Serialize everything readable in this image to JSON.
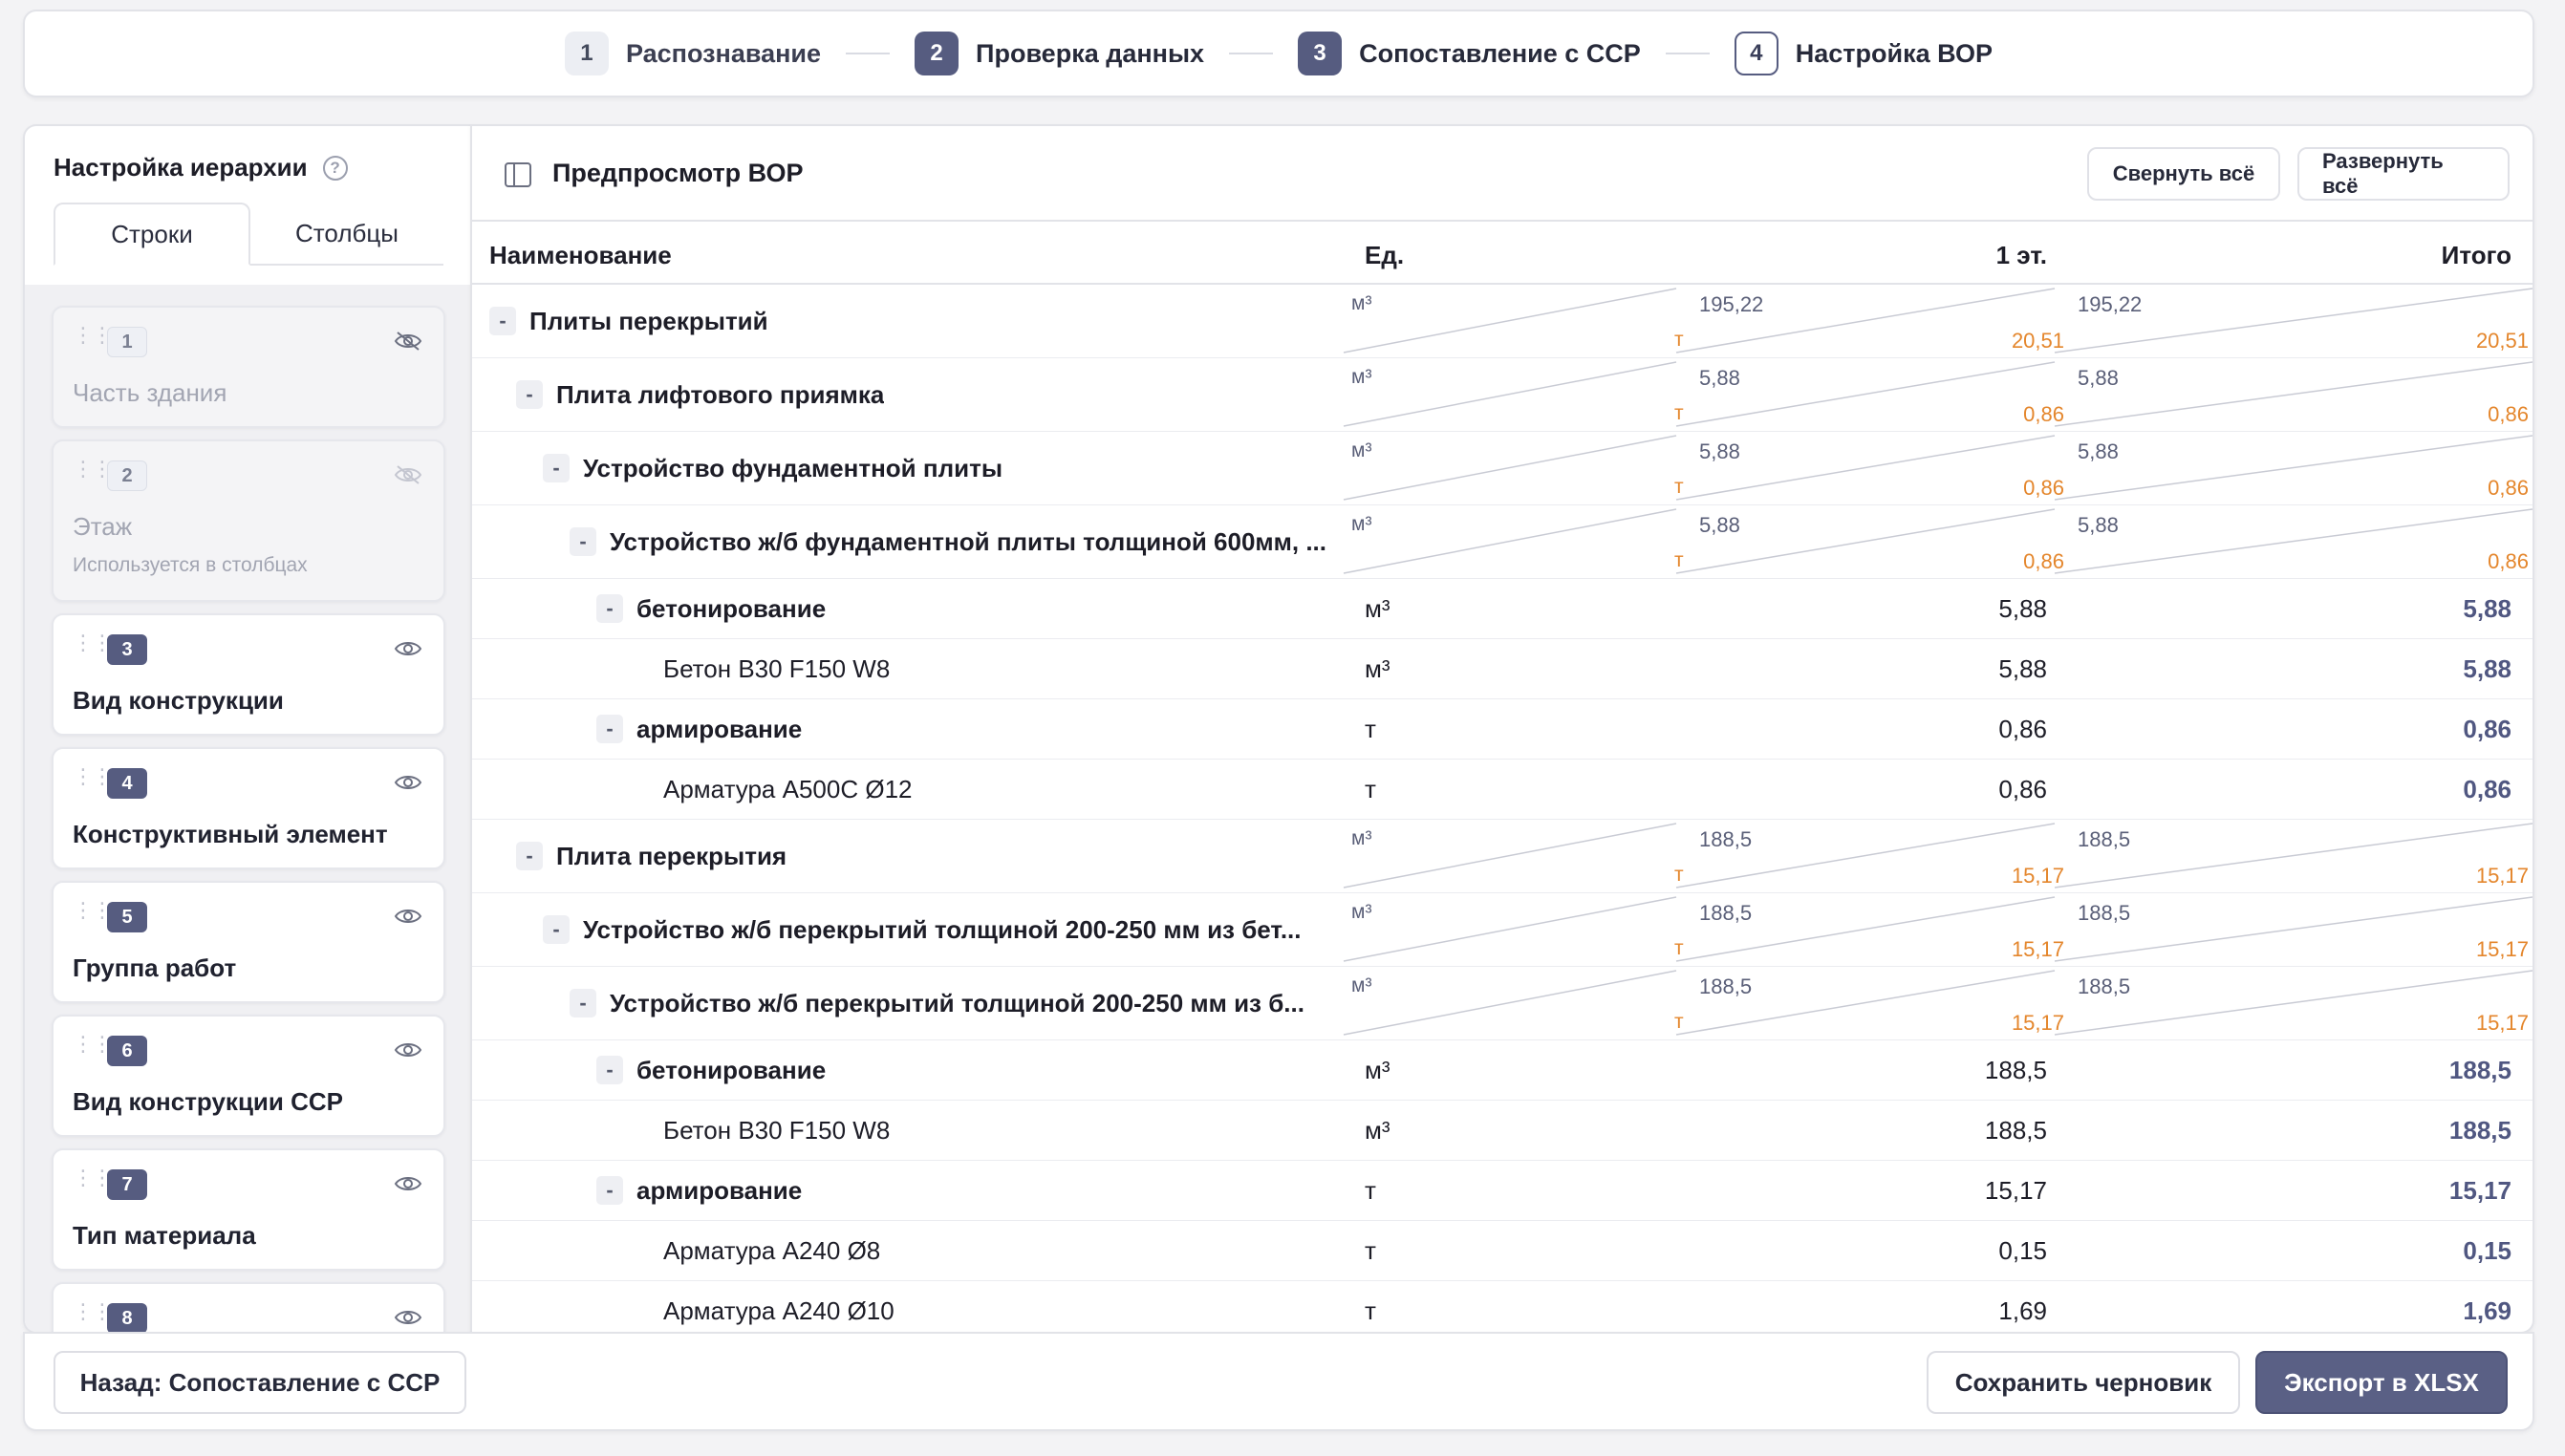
{
  "stepper": {
    "steps": [
      {
        "num": "1",
        "label": "Распознавание"
      },
      {
        "num": "2",
        "label": "Проверка данных"
      },
      {
        "num": "3",
        "label": "Сопоставление с ССР"
      },
      {
        "num": "4",
        "label": "Настройка ВОР"
      }
    ]
  },
  "sidebar": {
    "title": "Настройка иерархии",
    "help": "?",
    "tabs": [
      "Строки",
      "Столбцы"
    ],
    "levels": [
      {
        "num": "1",
        "name": "Часть здания",
        "sub": "",
        "icon": "eye-off-icon"
      },
      {
        "num": "2",
        "name": "Этаж",
        "sub": "Используется в столбцах",
        "icon": "eye-off-icon"
      },
      {
        "num": "3",
        "name": "Вид конструкции",
        "sub": "",
        "icon": "eye-icon"
      },
      {
        "num": "4",
        "name": "Конструктивный элемент",
        "sub": "",
        "icon": "eye-icon"
      },
      {
        "num": "5",
        "name": "Группа работ",
        "sub": "",
        "icon": "eye-icon"
      },
      {
        "num": "6",
        "name": "Вид конструкции ССР",
        "sub": "",
        "icon": "eye-icon"
      },
      {
        "num": "7",
        "name": "Тип материала",
        "sub": "",
        "icon": "eye-icon"
      },
      {
        "num": "8",
        "name": "",
        "sub": "",
        "icon": "eye-icon"
      }
    ]
  },
  "main": {
    "title": "Предпросмотр ВОР",
    "collapse_label": "Свернуть всё",
    "expand_label": "Развернуть всё",
    "columns": {
      "name": "Наименование",
      "unit": "Ед.",
      "floor": "1 эт.",
      "total": "Итого"
    },
    "colors": {
      "accent": "#565c80",
      "orange": "#e4862c",
      "total": "#505781"
    },
    "rows": [
      {
        "indent": 0,
        "toggle": "-",
        "name": "Плиты перекрытий",
        "split": true,
        "u1": "м³",
        "u2": "т",
        "v1": "195,22",
        "v2": "20,51",
        "t1": "195,22",
        "t2": "20,51"
      },
      {
        "indent": 1,
        "toggle": "-",
        "name": "Плита лифтового приямка",
        "split": true,
        "u1": "м³",
        "u2": "т",
        "v1": "5,88",
        "v2": "0,86",
        "t1": "5,88",
        "t2": "0,86"
      },
      {
        "indent": 2,
        "toggle": "-",
        "name": "Устройство фундаментной плиты",
        "split": true,
        "u1": "м³",
        "u2": "т",
        "v1": "5,88",
        "v2": "0,86",
        "t1": "5,88",
        "t2": "0,86"
      },
      {
        "indent": 3,
        "toggle": "-",
        "name": "Устройство ж/б фундаментной плиты толщиной 600мм, ...",
        "split": true,
        "u1": "м³",
        "u2": "т",
        "v1": "5,88",
        "v2": "0,86",
        "t1": "5,88",
        "t2": "0,86"
      },
      {
        "indent": 4,
        "toggle": "-",
        "name": "бетонирование",
        "split": false,
        "unit": "м³",
        "val": "5,88",
        "total": "5,88"
      },
      {
        "indent": 5,
        "toggle": "",
        "name": "Бетон B30 F150 W8",
        "split": false,
        "unit": "м³",
        "val": "5,88",
        "total": "5,88"
      },
      {
        "indent": 4,
        "toggle": "-",
        "name": "армирование",
        "split": false,
        "unit": "т",
        "val": "0,86",
        "total": "0,86"
      },
      {
        "indent": 5,
        "toggle": "",
        "name": "Арматура A500C Ø12",
        "split": false,
        "unit": "т",
        "val": "0,86",
        "total": "0,86"
      },
      {
        "indent": 1,
        "toggle": "-",
        "name": "Плита перекрытия",
        "split": true,
        "u1": "м³",
        "u2": "т",
        "v1": "188,5",
        "v2": "15,17",
        "t1": "188,5",
        "t2": "15,17"
      },
      {
        "indent": 2,
        "toggle": "-",
        "name": "Устройство ж/б перекрытий толщиной 200-250 мм из бет...",
        "split": true,
        "u1": "м³",
        "u2": "т",
        "v1": "188,5",
        "v2": "15,17",
        "t1": "188,5",
        "t2": "15,17"
      },
      {
        "indent": 3,
        "toggle": "-",
        "name": "Устройство ж/б перекрытий толщиной 200-250 мм из б...",
        "split": true,
        "u1": "м³",
        "u2": "т",
        "v1": "188,5",
        "v2": "15,17",
        "t1": "188,5",
        "t2": "15,17"
      },
      {
        "indent": 4,
        "toggle": "-",
        "name": "бетонирование",
        "split": false,
        "unit": "м³",
        "val": "188,5",
        "total": "188,5"
      },
      {
        "indent": 5,
        "toggle": "",
        "name": "Бетон B30 F150 W8",
        "split": false,
        "unit": "м³",
        "val": "188,5",
        "total": "188,5"
      },
      {
        "indent": 4,
        "toggle": "-",
        "name": "армирование",
        "split": false,
        "unit": "т",
        "val": "15,17",
        "total": "15,17"
      },
      {
        "indent": 5,
        "toggle": "",
        "name": "Арматура A240 Ø8",
        "split": false,
        "unit": "т",
        "val": "0,15",
        "total": "0,15"
      },
      {
        "indent": 5,
        "toggle": "",
        "name": "Арматура A240 Ø10",
        "split": false,
        "unit": "т",
        "val": "1,69",
        "total": "1,69"
      }
    ]
  },
  "footer": {
    "back_label": "Назад: Сопоставление с ССР",
    "draft_label": "Сохранить черновик",
    "export_label": "Экспорт в XLSX"
  }
}
